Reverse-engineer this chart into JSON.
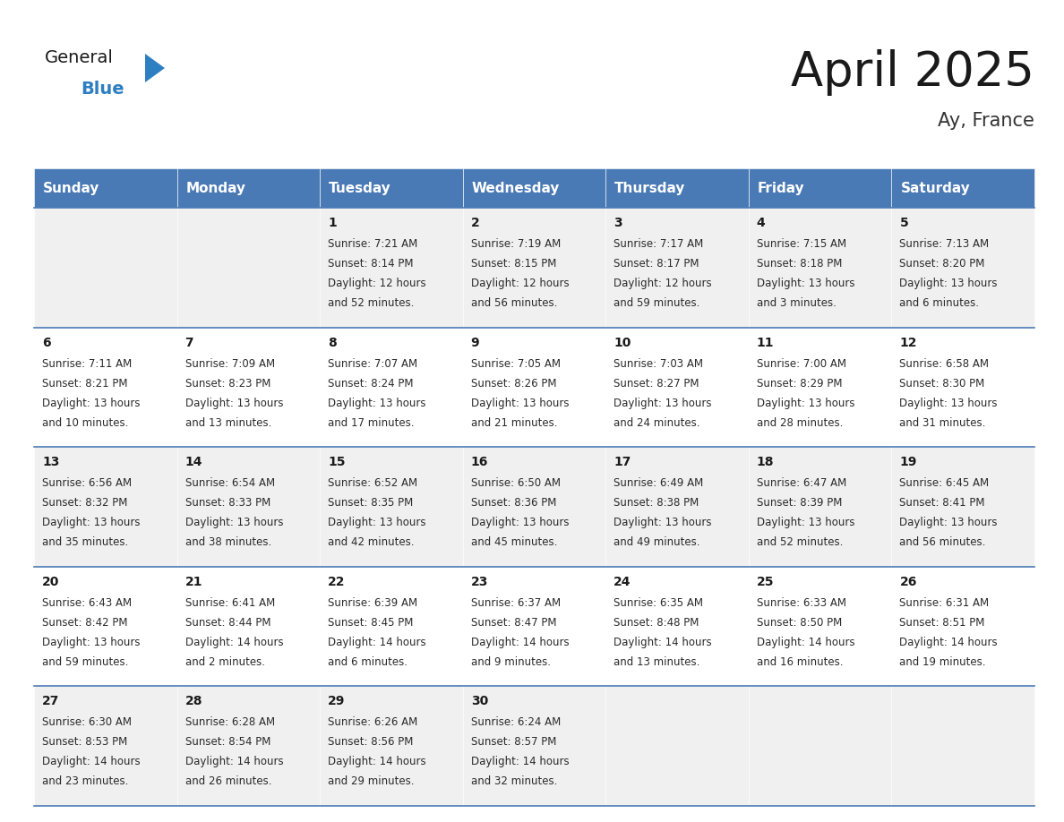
{
  "title": "April 2025",
  "subtitle": "Ay, France",
  "header_bg_color": "#4a7ab5",
  "header_text_color": "#ffffff",
  "row_bg_even": "#f0f0f0",
  "row_bg_odd": "#ffffff",
  "cell_border_color": "#4a7ab5",
  "day_headers": [
    "Sunday",
    "Monday",
    "Tuesday",
    "Wednesday",
    "Thursday",
    "Friday",
    "Saturday"
  ],
  "days": [
    {
      "day": null,
      "sunrise": null,
      "sunset": null,
      "daylight": null
    },
    {
      "day": null,
      "sunrise": null,
      "sunset": null,
      "daylight": null
    },
    {
      "day": 1,
      "sunrise": "7:21 AM",
      "sunset": "8:14 PM",
      "daylight": "12 hours\nand 52 minutes."
    },
    {
      "day": 2,
      "sunrise": "7:19 AM",
      "sunset": "8:15 PM",
      "daylight": "12 hours\nand 56 minutes."
    },
    {
      "day": 3,
      "sunrise": "7:17 AM",
      "sunset": "8:17 PM",
      "daylight": "12 hours\nand 59 minutes."
    },
    {
      "day": 4,
      "sunrise": "7:15 AM",
      "sunset": "8:18 PM",
      "daylight": "13 hours\nand 3 minutes."
    },
    {
      "day": 5,
      "sunrise": "7:13 AM",
      "sunset": "8:20 PM",
      "daylight": "13 hours\nand 6 minutes."
    },
    {
      "day": 6,
      "sunrise": "7:11 AM",
      "sunset": "8:21 PM",
      "daylight": "13 hours\nand 10 minutes."
    },
    {
      "day": 7,
      "sunrise": "7:09 AM",
      "sunset": "8:23 PM",
      "daylight": "13 hours\nand 13 minutes."
    },
    {
      "day": 8,
      "sunrise": "7:07 AM",
      "sunset": "8:24 PM",
      "daylight": "13 hours\nand 17 minutes."
    },
    {
      "day": 9,
      "sunrise": "7:05 AM",
      "sunset": "8:26 PM",
      "daylight": "13 hours\nand 21 minutes."
    },
    {
      "day": 10,
      "sunrise": "7:03 AM",
      "sunset": "8:27 PM",
      "daylight": "13 hours\nand 24 minutes."
    },
    {
      "day": 11,
      "sunrise": "7:00 AM",
      "sunset": "8:29 PM",
      "daylight": "13 hours\nand 28 minutes."
    },
    {
      "day": 12,
      "sunrise": "6:58 AM",
      "sunset": "8:30 PM",
      "daylight": "13 hours\nand 31 minutes."
    },
    {
      "day": 13,
      "sunrise": "6:56 AM",
      "sunset": "8:32 PM",
      "daylight": "13 hours\nand 35 minutes."
    },
    {
      "day": 14,
      "sunrise": "6:54 AM",
      "sunset": "8:33 PM",
      "daylight": "13 hours\nand 38 minutes."
    },
    {
      "day": 15,
      "sunrise": "6:52 AM",
      "sunset": "8:35 PM",
      "daylight": "13 hours\nand 42 minutes."
    },
    {
      "day": 16,
      "sunrise": "6:50 AM",
      "sunset": "8:36 PM",
      "daylight": "13 hours\nand 45 minutes."
    },
    {
      "day": 17,
      "sunrise": "6:49 AM",
      "sunset": "8:38 PM",
      "daylight": "13 hours\nand 49 minutes."
    },
    {
      "day": 18,
      "sunrise": "6:47 AM",
      "sunset": "8:39 PM",
      "daylight": "13 hours\nand 52 minutes."
    },
    {
      "day": 19,
      "sunrise": "6:45 AM",
      "sunset": "8:41 PM",
      "daylight": "13 hours\nand 56 minutes."
    },
    {
      "day": 20,
      "sunrise": "6:43 AM",
      "sunset": "8:42 PM",
      "daylight": "13 hours\nand 59 minutes."
    },
    {
      "day": 21,
      "sunrise": "6:41 AM",
      "sunset": "8:44 PM",
      "daylight": "14 hours\nand 2 minutes."
    },
    {
      "day": 22,
      "sunrise": "6:39 AM",
      "sunset": "8:45 PM",
      "daylight": "14 hours\nand 6 minutes."
    },
    {
      "day": 23,
      "sunrise": "6:37 AM",
      "sunset": "8:47 PM",
      "daylight": "14 hours\nand 9 minutes."
    },
    {
      "day": 24,
      "sunrise": "6:35 AM",
      "sunset": "8:48 PM",
      "daylight": "14 hours\nand 13 minutes."
    },
    {
      "day": 25,
      "sunrise": "6:33 AM",
      "sunset": "8:50 PM",
      "daylight": "14 hours\nand 16 minutes."
    },
    {
      "day": 26,
      "sunrise": "6:31 AM",
      "sunset": "8:51 PM",
      "daylight": "14 hours\nand 19 minutes."
    },
    {
      "day": 27,
      "sunrise": "6:30 AM",
      "sunset": "8:53 PM",
      "daylight": "14 hours\nand 23 minutes."
    },
    {
      "day": 28,
      "sunrise": "6:28 AM",
      "sunset": "8:54 PM",
      "daylight": "14 hours\nand 26 minutes."
    },
    {
      "day": 29,
      "sunrise": "6:26 AM",
      "sunset": "8:56 PM",
      "daylight": "14 hours\nand 29 minutes."
    },
    {
      "day": 30,
      "sunrise": "6:24 AM",
      "sunset": "8:57 PM",
      "daylight": "14 hours\nand 32 minutes."
    },
    {
      "day": null,
      "sunrise": null,
      "sunset": null,
      "daylight": null
    },
    {
      "day": null,
      "sunrise": null,
      "sunset": null,
      "daylight": null
    },
    {
      "day": null,
      "sunrise": null,
      "sunset": null,
      "daylight": null
    }
  ],
  "logo_text_general": "General",
  "logo_text_blue": "Blue",
  "logo_triangle_color": "#2d7fc1",
  "logo_general_color": "#1a1a1a",
  "logo_blue_color": "#2d7fc1",
  "title_fontsize": 38,
  "subtitle_fontsize": 15,
  "header_fontsize": 11,
  "day_num_fontsize": 10,
  "cell_fontsize": 8.5
}
